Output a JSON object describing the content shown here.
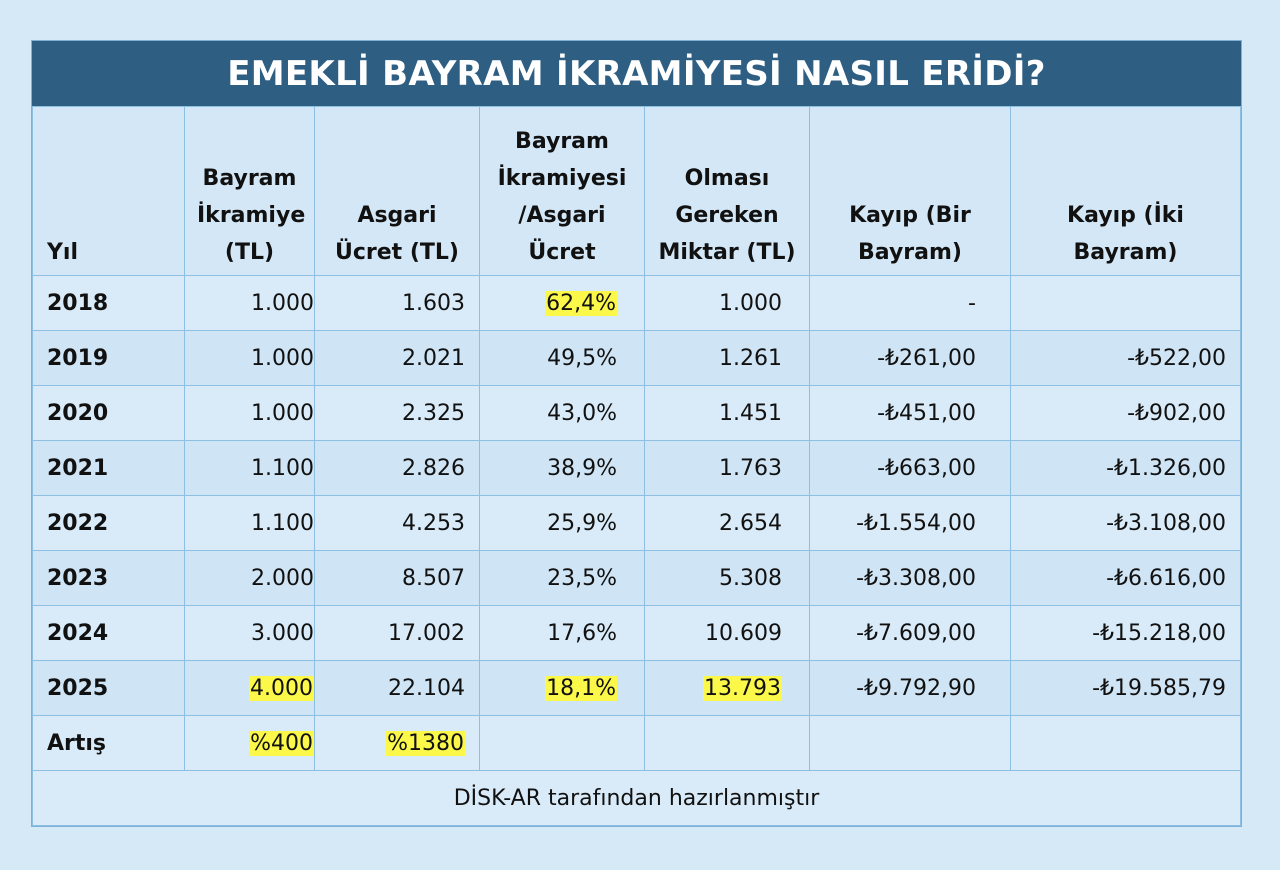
{
  "title": "EMEKLİ BAYRAM İKRAMİYESİ NASIL ERİDİ?",
  "highlight_color": "#fbf84a",
  "header_color": "#2e5f83",
  "columns": [
    {
      "label": "Yıl"
    },
    {
      "label": "Bayram İkramiye (TL)"
    },
    {
      "label": "Asgari Ücret (TL)"
    },
    {
      "label": "Bayram İkramiyesi /Asgari Ücret"
    },
    {
      "label": "Olması Gereken Miktar (TL)"
    },
    {
      "label": "Kayıp (Bir Bayram)"
    },
    {
      "label": "Kayıp (İki Bayram)"
    }
  ],
  "rows": [
    {
      "year": "2018",
      "bonus": "1.000",
      "min_wage": "1.603",
      "ratio": "62,4%",
      "should_be": "1.000",
      "loss_one": "-",
      "loss_two": ""
    },
    {
      "year": "2019",
      "bonus": "1.000",
      "min_wage": "2.021",
      "ratio": "49,5%",
      "should_be": "1.261",
      "loss_one": "-₺261,00",
      "loss_two": "-₺522,00"
    },
    {
      "year": "2020",
      "bonus": "1.000",
      "min_wage": "2.325",
      "ratio": "43,0%",
      "should_be": "1.451",
      "loss_one": "-₺451,00",
      "loss_two": "-₺902,00"
    },
    {
      "year": "2021",
      "bonus": "1.100",
      "min_wage": "2.826",
      "ratio": "38,9%",
      "should_be": "1.763",
      "loss_one": "-₺663,00",
      "loss_two": "-₺1.326,00"
    },
    {
      "year": "2022",
      "bonus": "1.100",
      "min_wage": "4.253",
      "ratio": "25,9%",
      "should_be": "2.654",
      "loss_one": "-₺1.554,00",
      "loss_two": "-₺3.108,00"
    },
    {
      "year": "2023",
      "bonus": "2.000",
      "min_wage": "8.507",
      "ratio": "23,5%",
      "should_be": "5.308",
      "loss_one": "-₺3.308,00",
      "loss_two": "-₺6.616,00"
    },
    {
      "year": "2024",
      "bonus": "3.000",
      "min_wage": "17.002",
      "ratio": "17,6%",
      "should_be": "10.609",
      "loss_one": "-₺7.609,00",
      "loss_two": "-₺15.218,00"
    },
    {
      "year": "2025",
      "bonus": "4.000",
      "min_wage": "22.104",
      "ratio": "18,1%",
      "should_be": "13.793",
      "loss_one": "-₺9.792,90",
      "loss_two": "-₺19.585,79"
    }
  ],
  "increase_row": {
    "label": "Artış",
    "bonus": "%400",
    "min_wage": "%1380"
  },
  "footer": "DİSK-AR tarafından hazırlanmıştır"
}
